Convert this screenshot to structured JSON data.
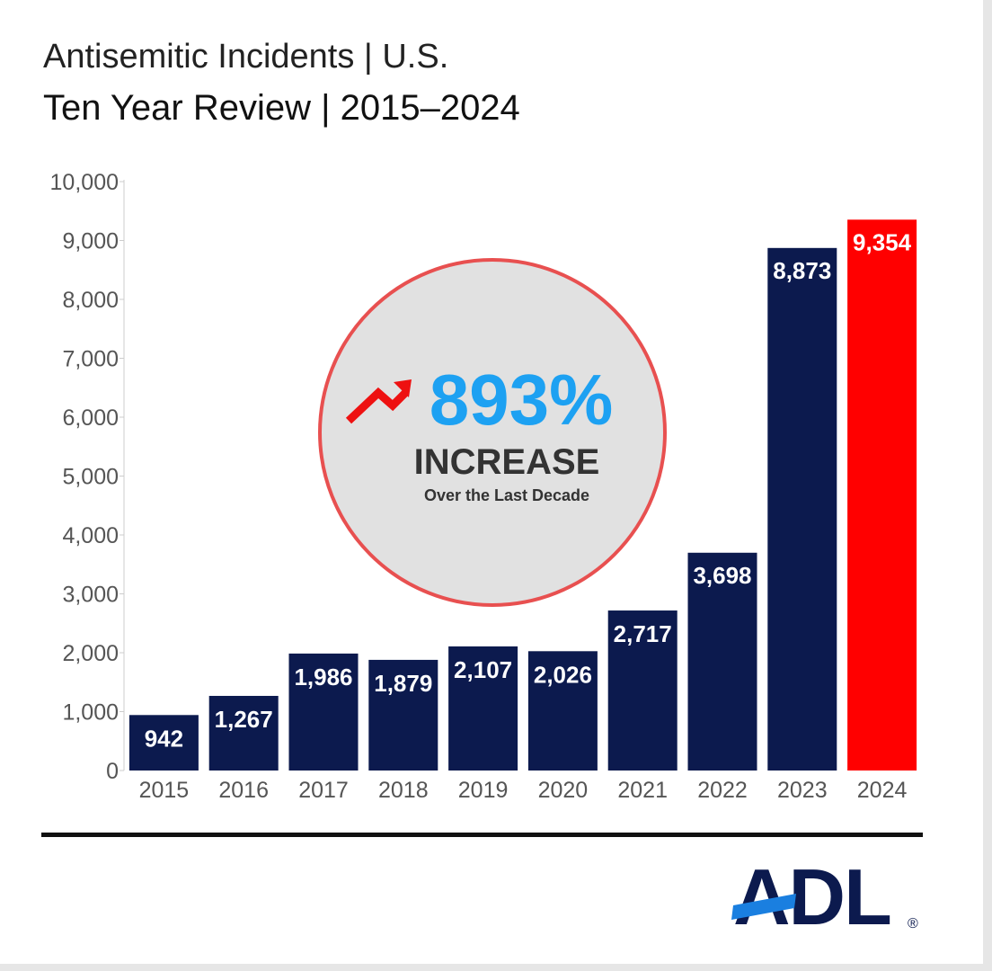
{
  "title_line1": "Antisemitic Incidents | U.S.",
  "title_line2": "Ten Year Review | 2015–2024",
  "callout": {
    "percent": "893%",
    "word": "INCREASE",
    "sub": "Over the Last Decade",
    "icon": "trend-up-arrow-icon",
    "circle_color": "#e85050",
    "percent_color": "#1da1f2"
  },
  "chart_data": {
    "type": "bar",
    "categories": [
      "2015",
      "2016",
      "2017",
      "2018",
      "2019",
      "2020",
      "2021",
      "2022",
      "2023",
      "2024"
    ],
    "values": [
      942,
      1267,
      1986,
      1879,
      2107,
      2026,
      2717,
      3698,
      8873,
      9354
    ],
    "data_labels": [
      "942",
      "1,267",
      "1,986",
      "1,879",
      "2,107",
      "2,026",
      "2,717",
      "3,698",
      "8,873",
      "9,354"
    ],
    "yticks": [
      0,
      1000,
      2000,
      3000,
      4000,
      5000,
      6000,
      7000,
      8000,
      9000,
      10000
    ],
    "ytick_labels": [
      "0",
      "1,000",
      "2,000",
      "3,000",
      "4,000",
      "5,000",
      "6,000",
      "7,000",
      "8,000",
      "9,000",
      "10,000"
    ],
    "ylim": [
      0,
      10000
    ],
    "title": "Antisemitic Incidents | U.S.",
    "subtitle": "Ten Year Review | 2015–2024",
    "xlabel": "",
    "ylabel": "",
    "grid": false,
    "bar_color": "#0c1a4e",
    "highlight_color": "#ff0000",
    "highlight_category": "2024"
  },
  "logo": {
    "text": "ADL",
    "registered": "®",
    "color": "#0c1a4e",
    "accent_color": "#1a7fe0"
  }
}
